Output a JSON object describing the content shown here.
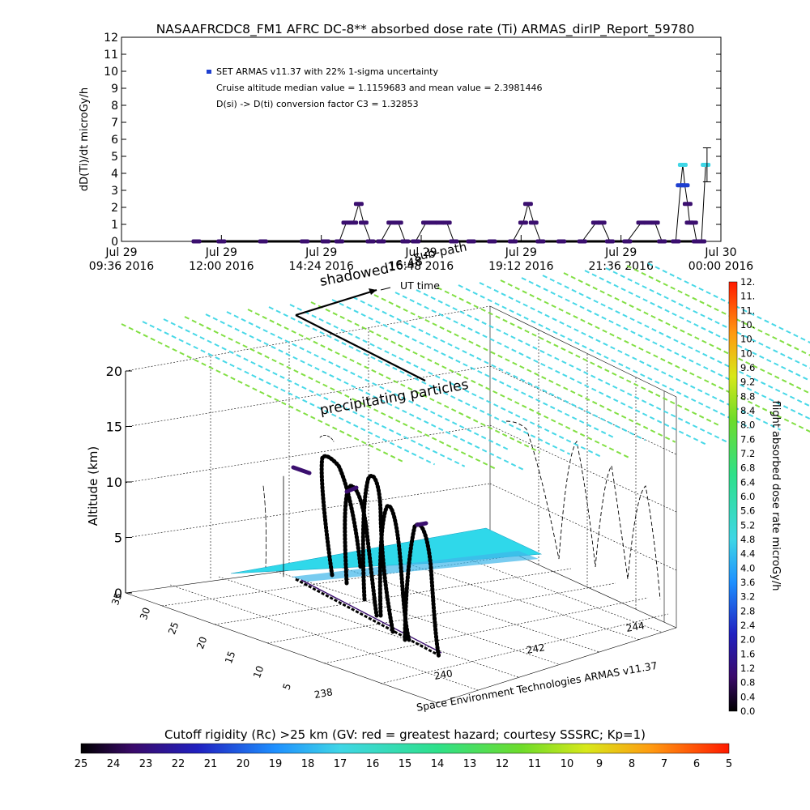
{
  "figure": {
    "title": "NASAAFRCDC8_FM1 AFRC DC-8** absorbed dose rate (Ti) ARMAS_dirIP_Report_59780"
  },
  "colors": {
    "dose_point": "#3b0f6f",
    "dose_point_high": "#3fd6e6",
    "dose_point_mid": "#1e3fd0",
    "flux_lines_a": "#7cde3a",
    "flux_lines_b": "#3fd6e6",
    "plane_fill": "#2fd8ea"
  },
  "chart_data": [
    {
      "type": "scatter",
      "name": "dose_rate_timeseries",
      "ylabel": "dD(Ti)/dt microGy/h",
      "xlabel": "",
      "ylim": [
        0,
        12
      ],
      "yticks": [
        "0",
        "1",
        "2",
        "3",
        "4",
        "5",
        "6",
        "7",
        "8",
        "9",
        "10",
        "11",
        "12"
      ],
      "xticks": [
        {
          "l1": "Jul 29",
          "l2": "09:36 2016"
        },
        {
          "l1": "Jul 29",
          "l2": "12:00 2016"
        },
        {
          "l1": "Jul 29",
          "l2": "14:24 2016"
        },
        {
          "l1": "Jul 29",
          "l2": "16:48 2016"
        },
        {
          "l1": "Jul 29",
          "l2": "19:12 2016"
        },
        {
          "l1": "Jul 29",
          "l2": "21:36 2016"
        },
        {
          "l1": "Jul 30",
          "l2": "00:00 2016"
        }
      ],
      "legend": [
        "SET ARMAS v11.37 with 22% 1-sigma uncertainty",
        "Cruise altitude median value = 1.1159683 and mean value = 2.3981446",
        "D(si) -> D(ti) conversion factor C3 = 1.32853"
      ],
      "points": [
        {
          "t": "11:24",
          "v": 0
        },
        {
          "t": "12:00",
          "v": 0
        },
        {
          "t": "13:00",
          "v": 0
        },
        {
          "t": "14:00",
          "v": 0
        },
        {
          "t": "14:30",
          "v": 0
        },
        {
          "t": "14:50",
          "v": 0
        },
        {
          "t": "15:00",
          "v": 1.1
        },
        {
          "t": "15:10",
          "v": 1.1
        },
        {
          "t": "15:18",
          "v": 2.2
        },
        {
          "t": "15:25",
          "v": 1.1
        },
        {
          "t": "15:35",
          "v": 0
        },
        {
          "t": "15:50",
          "v": 0
        },
        {
          "t": "16:05",
          "v": 1.1
        },
        {
          "t": "16:15",
          "v": 1.1
        },
        {
          "t": "16:25",
          "v": 0
        },
        {
          "t": "16:40",
          "v": 0
        },
        {
          "t": "16:55",
          "v": 1.1
        },
        {
          "t": "17:05",
          "v": 1.1
        },
        {
          "t": "17:15",
          "v": 1.1
        },
        {
          "t": "17:25",
          "v": 1.1
        },
        {
          "t": "17:35",
          "v": 0
        },
        {
          "t": "18:00",
          "v": 0
        },
        {
          "t": "18:30",
          "v": 0
        },
        {
          "t": "19:00",
          "v": 0
        },
        {
          "t": "19:15",
          "v": 1.1
        },
        {
          "t": "19:22",
          "v": 2.2
        },
        {
          "t": "19:30",
          "v": 1.1
        },
        {
          "t": "19:40",
          "v": 0
        },
        {
          "t": "20:10",
          "v": 0
        },
        {
          "t": "20:40",
          "v": 0
        },
        {
          "t": "21:00",
          "v": 1.1
        },
        {
          "t": "21:08",
          "v": 1.1
        },
        {
          "t": "21:20",
          "v": 0
        },
        {
          "t": "21:45",
          "v": 0
        },
        {
          "t": "22:05",
          "v": 1.1
        },
        {
          "t": "22:15",
          "v": 1.1
        },
        {
          "t": "22:25",
          "v": 1.1
        },
        {
          "t": "22:35",
          "v": 0
        },
        {
          "t": "22:55",
          "v": 0
        },
        {
          "t": "23:02",
          "v": 3.3
        },
        {
          "t": "23:05",
          "v": 4.5
        },
        {
          "t": "23:08",
          "v": 3.3
        },
        {
          "t": "23:12",
          "v": 2.2
        },
        {
          "t": "23:15",
          "v": 1.1
        },
        {
          "t": "23:20",
          "v": 1.1
        },
        {
          "t": "23:25",
          "v": 0
        },
        {
          "t": "23:32",
          "v": 0
        },
        {
          "t": "23:38",
          "v": 4.5
        }
      ],
      "error_bar": {
        "t": "23:40",
        "low": 3.5,
        "high": 5.5
      }
    },
    {
      "type": "scatter",
      "name": "flight_3d_view",
      "zlabel": "Altitude (km)",
      "zticks": [
        "0",
        "5",
        "10",
        "15",
        "20"
      ],
      "yticks": [
        "5",
        "10",
        "15",
        "20",
        "25",
        "30",
        "35"
      ],
      "xticks": [
        "238",
        "240",
        "242",
        "244"
      ],
      "annotations": [
        "shadowed",
        "16:48",
        "sub-path",
        "UT time",
        "precipitating particles"
      ],
      "caption": "Space Environment Technologies ARMAS v11.37"
    },
    {
      "type": "heatmap",
      "name": "dose_colorbar",
      "label": "flight absorbed dose rate microGy/h",
      "ticks": [
        "0.0",
        "0.4",
        "0.8",
        "1.2",
        "1.6",
        "2.0",
        "2.4",
        "2.8",
        "3.2",
        "3.6",
        "4.0",
        "4.4",
        "4.8",
        "5.2",
        "5.6",
        "6.0",
        "6.4",
        "6.8",
        "7.2",
        "7.6",
        "8.0",
        "8.4",
        "8.8",
        "9.2",
        "9.6",
        "10.",
        "10.",
        "10.",
        "11.",
        "11.",
        "12."
      ]
    },
    {
      "type": "heatmap",
      "name": "rigidity_colorbar",
      "label": "Cutoff rigidity (Rc) >25 km (GV: red = greatest hazard; courtesy SSSRC; Kp=1)",
      "ticks": [
        "25",
        "24",
        "23",
        "22",
        "21",
        "20",
        "19",
        "18",
        "17",
        "16",
        "15",
        "14",
        "13",
        "12",
        "11",
        "10",
        "9",
        "8",
        "7",
        "6",
        "5"
      ]
    }
  ]
}
